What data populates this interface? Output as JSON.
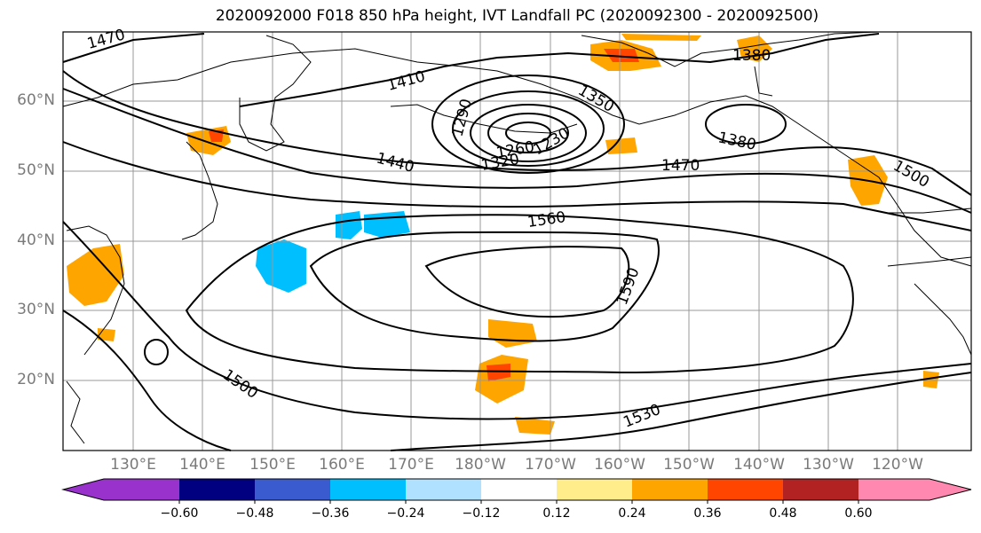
{
  "title": "2020092000 F018 850 hPa height, IVT Landfall PC (2020092300 - 2020092500)",
  "map": {
    "lat_labels": [
      "60°N",
      "50°N",
      "40°N",
      "30°N",
      "20°N"
    ],
    "lon_labels": [
      "130°E",
      "140°E",
      "150°E",
      "160°E",
      "170°E",
      "180°W",
      "170°W",
      "160°W",
      "150°W",
      "140°W",
      "130°W",
      "120°W"
    ],
    "contour_labels": [
      "1470",
      "1410",
      "1350",
      "1380",
      "1290",
      "1230",
      "1260",
      "1320",
      "1440",
      "1470",
      "1380",
      "1500",
      "1560",
      "1590",
      "1500",
      "1530"
    ],
    "colors": {
      "gridline": "#999999",
      "contour": "#000000",
      "coast": "#000000"
    }
  },
  "colorbar": {
    "tick_labels": [
      "−0.60",
      "−0.48",
      "−0.36",
      "−0.24",
      "−0.12",
      "0.12",
      "0.24",
      "0.36",
      "0.48",
      "0.60"
    ],
    "colors": [
      "#9932cc",
      "#000080",
      "#3a5bcf",
      "#00bfff",
      "#b0e2ff",
      "#ffffff",
      "#ffec8b",
      "#ffa500",
      "#ff4500",
      "#b22222",
      "#ff88b0"
    ]
  }
}
